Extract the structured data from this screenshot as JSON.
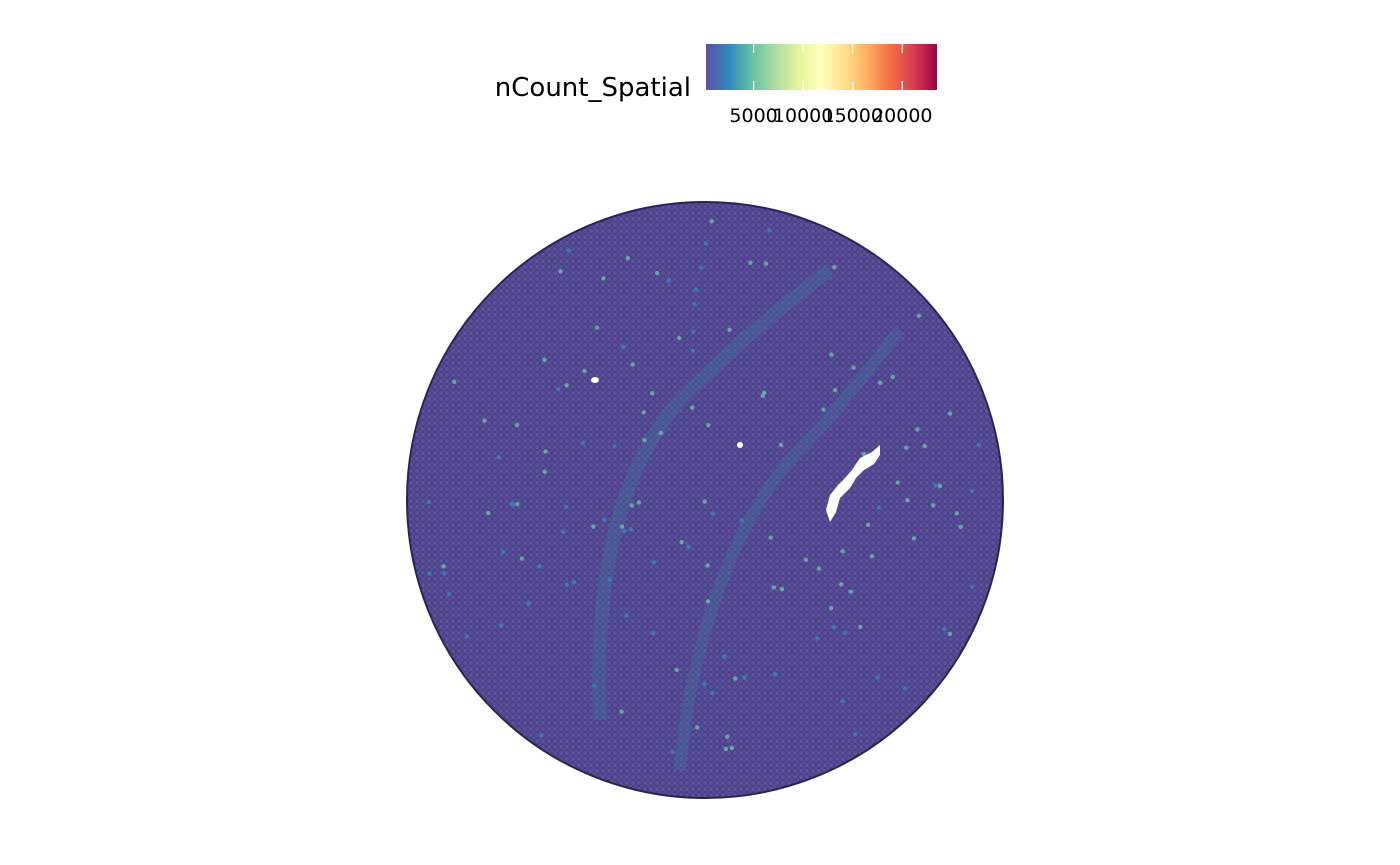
{
  "chart_data": {
    "type": "scatter",
    "subtype": "spatial feature plot",
    "feature": "nCount_Spatial",
    "colorbar": {
      "title": "nCount_Spatial",
      "palette": "Spectral (reversed)",
      "colors": [
        "#5E4FA2",
        "#3288BD",
        "#66C2A5",
        "#ABDDA4",
        "#E6F598",
        "#FFFFBF",
        "#FEE08B",
        "#FDAE61",
        "#F46D43",
        "#D53E4F",
        "#9E0142"
      ],
      "range": [
        200,
        23500
      ],
      "ticks": [
        5000,
        10000,
        15000,
        20000
      ],
      "tick_labels": [
        "5000",
        "10000",
        "15000",
        "20000"
      ],
      "position": "top"
    },
    "spots": {
      "shape": "circular tissue section",
      "outline_color": "#222222",
      "dominant_value_range": [
        200,
        2500
      ],
      "elevated_value_range": [
        3000,
        6000
      ],
      "background_color": "#5B4F9E"
    },
    "axes": "none",
    "grid": false
  }
}
